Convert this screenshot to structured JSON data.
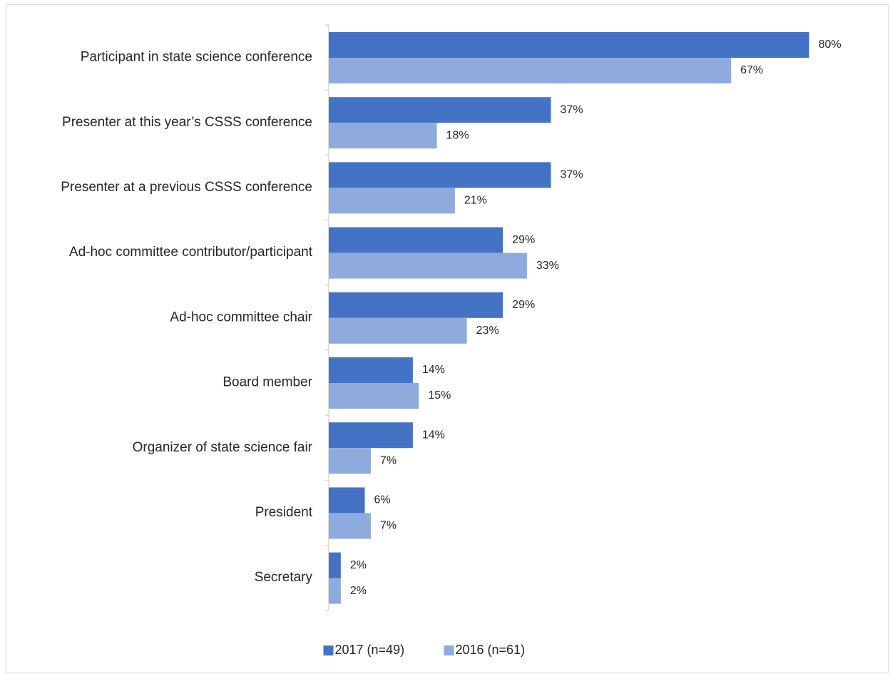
{
  "chart_data": {
    "type": "bar",
    "orientation": "horizontal",
    "title": "",
    "xlabel": "",
    "ylabel": "",
    "xlim": [
      0,
      82
    ],
    "grid": false,
    "legend_position": "bottom",
    "categories": [
      "Participant in state science conference",
      "Presenter at this year’s CSSS conference",
      "Presenter at a previous CSSS conference",
      "Ad-hoc committee contributor/participant",
      "Ad-hoc committee chair",
      "Board member",
      "Organizer of state science fair",
      "President",
      "Secretary"
    ],
    "series": [
      {
        "name": "2017 (n=49)",
        "color": "#4472c4",
        "values": [
          80,
          37,
          37,
          29,
          29,
          14,
          14,
          6,
          2
        ],
        "labels": [
          "80%",
          "37%",
          "37%",
          "29%",
          "29%",
          "14%",
          "14%",
          "6%",
          "2%"
        ]
      },
      {
        "name": "2016 (n=61)",
        "color": "#8faadc",
        "values": [
          67,
          18,
          21,
          33,
          23,
          15,
          7,
          7,
          2
        ],
        "labels": [
          "67%",
          "18%",
          "21%",
          "33%",
          "23%",
          "15%",
          "7%",
          "7%",
          "2%"
        ]
      }
    ]
  }
}
